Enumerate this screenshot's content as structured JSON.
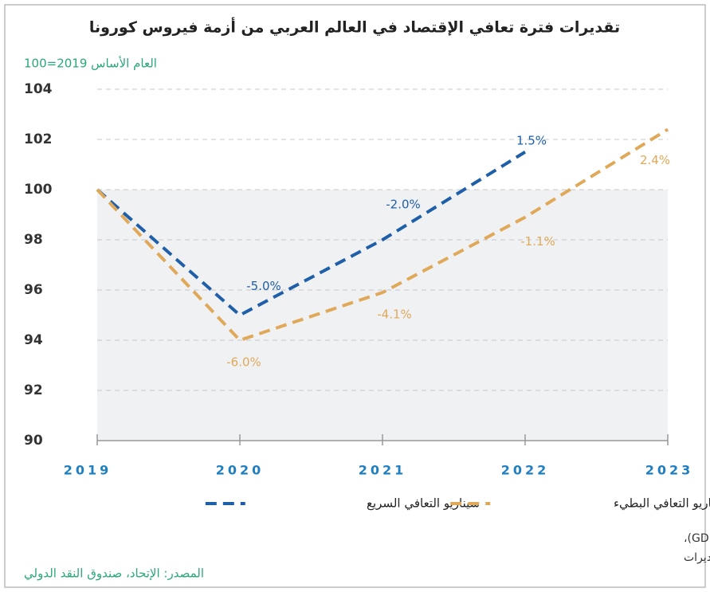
{
  "chart_data": {
    "type": "line",
    "title": "تقديرات فترة تعافي الإقتصاد في العالم العربي من أزمة فيروس كورونا",
    "subtitle": "العام الأساس 2019=100",
    "categories": [
      "2019",
      "2020",
      "2021",
      "2022",
      "2023"
    ],
    "series": [
      {
        "name": "سيناريو التعافي السريع",
        "color": "#1f5fa8",
        "values": [
          100,
          95,
          98,
          101.5,
          null
        ],
        "value_labels": [
          null,
          "-5.0%",
          "-2.0%",
          "1.5%",
          null
        ]
      },
      {
        "name": "سيناريو التعافي البطيء",
        "color": "#e0a95a",
        "values": [
          100,
          94,
          95.9,
          98.9,
          102.4
        ],
        "value_labels": [
          null,
          "-6.0%",
          "-4.1%",
          "-1.1%",
          "2.4%"
        ]
      }
    ],
    "ylim": [
      90,
      104
    ],
    "yticks": [
      90,
      92,
      94,
      96,
      98,
      100,
      102,
      104
    ],
    "grid": true,
    "notes": [
      "* تُمثّل البيانات نسب التغيّر مقارنةً بالعام 2019 (السنة التي سبقت الأزمة)، مقاس بالناتج الإجمالي (GDP)،",
      "تمثّل الخطوط المنقّطة التقديرات"
    ],
    "source": "المصدر: الإتحاد، صندوق النقد الدولي"
  }
}
